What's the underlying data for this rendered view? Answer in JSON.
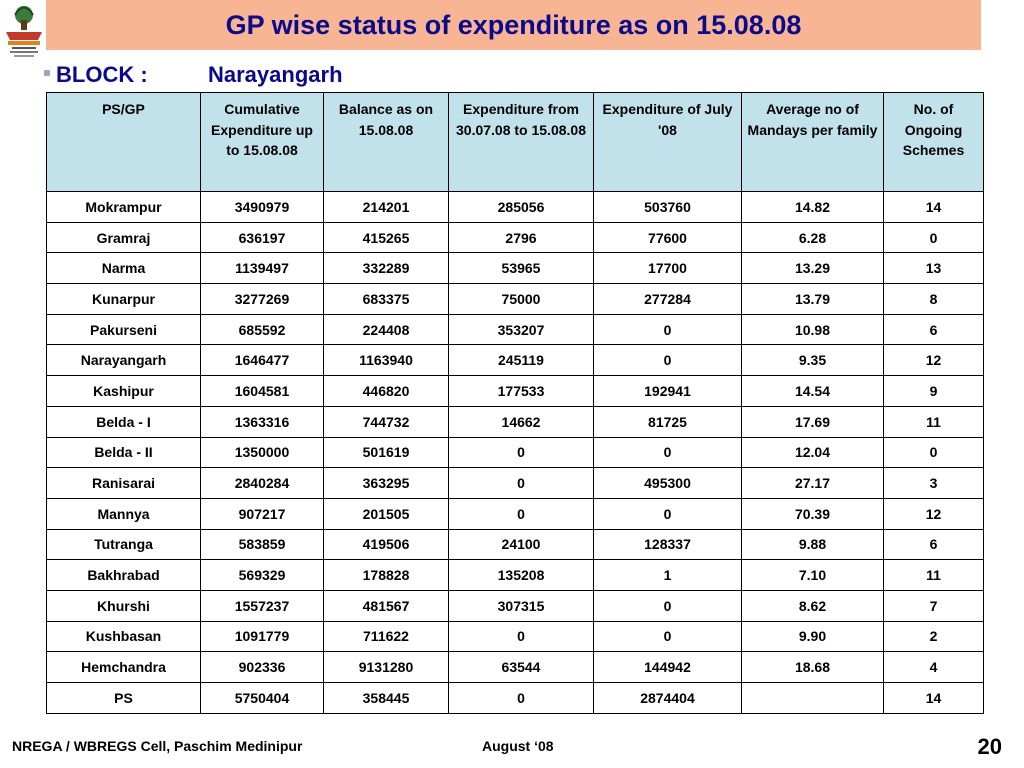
{
  "title": "GP wise status of expenditure as on 15.08.08",
  "block": {
    "label": "BLOCK :",
    "value": "Narayangarh"
  },
  "table": {
    "headers": [
      "PS/GP",
      "Cumulative Expenditure up to 15.08.08",
      "Balance as on 15.08.08",
      "Expenditure from 30.07.08 to 15.08.08",
      "Expenditure of July '08",
      "Average no of Mandays per family",
      "No. of Ongoing Schemes"
    ],
    "rows": [
      [
        "Mokrampur",
        "3490979",
        "214201",
        "285056",
        "503760",
        "14.82",
        "14"
      ],
      [
        "Gramraj",
        "636197",
        "415265",
        "2796",
        "77600",
        "6.28",
        "0"
      ],
      [
        "Narma",
        "1139497",
        "332289",
        "53965",
        "17700",
        "13.29",
        "13"
      ],
      [
        "Kunarpur",
        "3277269",
        "683375",
        "75000",
        "277284",
        "13.79",
        "8"
      ],
      [
        "Pakurseni",
        "685592",
        "224408",
        "353207",
        "0",
        "10.98",
        "6"
      ],
      [
        "Narayangarh",
        "1646477",
        "1163940",
        "245119",
        "0",
        "9.35",
        "12"
      ],
      [
        "Kashipur",
        "1604581",
        "446820",
        "177533",
        "192941",
        "14.54",
        "9"
      ],
      [
        "Belda - I",
        "1363316",
        "744732",
        "14662",
        "81725",
        "17.69",
        "11"
      ],
      [
        "Belda - II",
        "1350000",
        "501619",
        "0",
        "0",
        "12.04",
        "0"
      ],
      [
        "Ranisarai",
        "2840284",
        "363295",
        "0",
        "495300",
        "27.17",
        "3"
      ],
      [
        "Mannya",
        "907217",
        "201505",
        "0",
        "0",
        "70.39",
        "12"
      ],
      [
        "Tutranga",
        "583859",
        "419506",
        "24100",
        "128337",
        "9.88",
        "6"
      ],
      [
        "Bakhrabad",
        "569329",
        "178828",
        "135208",
        "1",
        "7.10",
        "11"
      ],
      [
        "Khurshi",
        "1557237",
        "481567",
        "307315",
        "0",
        "8.62",
        "7"
      ],
      [
        "Kushbasan",
        "1091779",
        "711622",
        "0",
        "0",
        "9.90",
        "2"
      ],
      [
        "Hemchandra",
        "902336",
        "9131280",
        "63544",
        "144942",
        "18.68",
        "4"
      ],
      [
        "PS",
        "5750404",
        "358445",
        "0",
        "2874404",
        "",
        "14"
      ]
    ]
  },
  "footer": {
    "left": "NREGA / WBREGS Cell, Paschim Medinipur",
    "middle": "August ‘08",
    "page_number": "20"
  },
  "colors": {
    "title_bar": "#f8b594",
    "title_text": "#0a0a8a",
    "header_fill": "#c1e2ea"
  },
  "icons": {
    "logo": "nrega-logo-icon"
  }
}
